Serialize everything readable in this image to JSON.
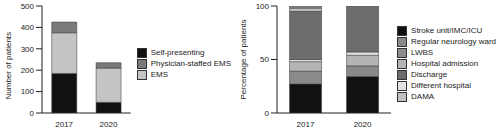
{
  "chart_data": [
    {
      "type": "bar",
      "stacked": true,
      "legend": "right",
      "y_label": "Number of patients",
      "categories": [
        "2017",
        "2020"
      ],
      "ylim": [
        0,
        500
      ],
      "yticks": [
        0,
        100,
        200,
        300,
        400,
        500
      ],
      "series": [
        {
          "name": "Self-presenting",
          "color": "#111111",
          "values": [
            185,
            50
          ]
        },
        {
          "name": "EMS",
          "color": "#c4c4c4",
          "values": [
            190,
            160
          ]
        },
        {
          "name": "Physician-staffed EMS",
          "color": "#7a7a7a",
          "values": [
            50,
            25
          ]
        }
      ]
    },
    {
      "type": "bar",
      "stacked": true,
      "legend": "right",
      "y_label": "Percentage of patients",
      "categories": [
        "2017",
        "2020"
      ],
      "ylim": [
        0,
        100
      ],
      "yticks": [
        0,
        50,
        100
      ],
      "series": [
        {
          "name": "Stroke unit/IMC/ICU",
          "color": "#111111",
          "values": [
            27,
            34
          ]
        },
        {
          "name": "Regular neurology ward",
          "color": "#8a8a8a",
          "values": [
            12,
            10
          ]
        },
        {
          "name": "Hospital admission",
          "color": "#b4b4b4",
          "values": [
            9,
            10
          ]
        },
        {
          "name": "Different hospital",
          "color": "#e2e2e2",
          "values": [
            2,
            3
          ]
        },
        {
          "name": "Discharge",
          "color": "#6c6c6c",
          "values": [
            45,
            41
          ]
        },
        {
          "name": "DAMA",
          "color": "#c0c0c0",
          "values": [
            3,
            1
          ]
        },
        {
          "name": "LWBS",
          "color": "#8c8c8c",
          "values": [
            2,
            1
          ]
        }
      ]
    }
  ]
}
